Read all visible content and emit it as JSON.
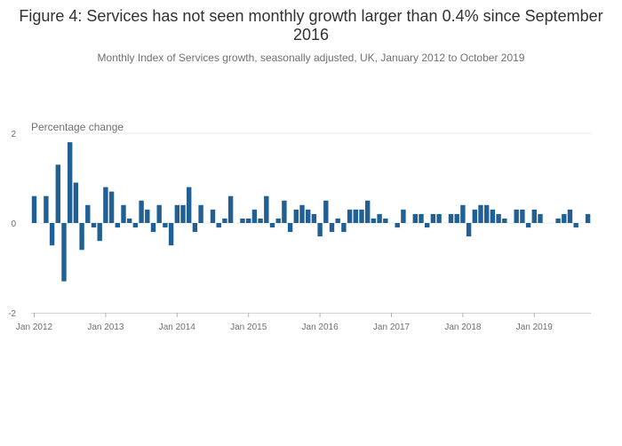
{
  "chart_data": {
    "type": "bar",
    "title": "Figure 4: Services has not seen monthly growth larger than 0.4% since September 2016",
    "subtitle": "Monthly Index of Services growth, seasonally adjusted, UK, January 2012 to October 2019",
    "ylabel": "Percentage change",
    "xlabel": "",
    "ylim": [
      -2,
      2
    ],
    "yticks": [
      2,
      0,
      -2
    ],
    "xticks": [
      "Jan 2012",
      "Jan 2013",
      "Jan 2014",
      "Jan 2015",
      "Jan 2016",
      "Jan 2017",
      "Jan 2018",
      "Jan 2019"
    ],
    "bar_color": "#206095",
    "grid": true,
    "x": [
      "2012-01",
      "2012-02",
      "2012-03",
      "2012-04",
      "2012-05",
      "2012-06",
      "2012-07",
      "2012-08",
      "2012-09",
      "2012-10",
      "2012-11",
      "2012-12",
      "2013-01",
      "2013-02",
      "2013-03",
      "2013-04",
      "2013-05",
      "2013-06",
      "2013-07",
      "2013-08",
      "2013-09",
      "2013-10",
      "2013-11",
      "2013-12",
      "2014-01",
      "2014-02",
      "2014-03",
      "2014-04",
      "2014-05",
      "2014-06",
      "2014-07",
      "2014-08",
      "2014-09",
      "2014-10",
      "2014-11",
      "2014-12",
      "2015-01",
      "2015-02",
      "2015-03",
      "2015-04",
      "2015-05",
      "2015-06",
      "2015-07",
      "2015-08",
      "2015-09",
      "2015-10",
      "2015-11",
      "2015-12",
      "2016-01",
      "2016-02",
      "2016-03",
      "2016-04",
      "2016-05",
      "2016-06",
      "2016-07",
      "2016-08",
      "2016-09",
      "2016-10",
      "2016-11",
      "2016-12",
      "2017-01",
      "2017-02",
      "2017-03",
      "2017-04",
      "2017-05",
      "2017-06",
      "2017-07",
      "2017-08",
      "2017-09",
      "2017-10",
      "2017-11",
      "2017-12",
      "2018-01",
      "2018-02",
      "2018-03",
      "2018-04",
      "2018-05",
      "2018-06",
      "2018-07",
      "2018-08",
      "2018-09",
      "2018-10",
      "2018-11",
      "2018-12",
      "2019-01",
      "2019-02",
      "2019-03",
      "2019-04",
      "2019-05",
      "2019-06",
      "2019-07",
      "2019-08",
      "2019-09",
      "2019-10"
    ],
    "values": [
      0.6,
      0.0,
      0.6,
      -0.5,
      1.3,
      -1.3,
      1.8,
      0.9,
      -0.6,
      0.4,
      -0.1,
      -0.4,
      0.8,
      0.7,
      -0.1,
      0.4,
      0.1,
      -0.1,
      0.5,
      0.3,
      -0.2,
      0.4,
      -0.1,
      -0.5,
      0.4,
      0.4,
      0.8,
      -0.2,
      0.4,
      0.0,
      0.3,
      -0.1,
      0.1,
      0.6,
      0.0,
      0.1,
      0.1,
      0.3,
      0.1,
      0.6,
      -0.1,
      0.1,
      0.5,
      -0.2,
      0.3,
      0.4,
      0.3,
      0.2,
      -0.3,
      0.5,
      -0.2,
      0.1,
      -0.2,
      0.3,
      0.3,
      0.3,
      0.5,
      0.1,
      0.2,
      0.1,
      0.0,
      -0.1,
      0.3,
      0.0,
      0.2,
      0.2,
      -0.1,
      0.2,
      0.2,
      0.0,
      0.2,
      0.2,
      0.4,
      -0.3,
      0.3,
      0.4,
      0.4,
      0.3,
      0.2,
      0.1,
      0.0,
      0.3,
      0.3,
      -0.1,
      0.3,
      0.2,
      0.0,
      0.0,
      0.1,
      0.2,
      0.3,
      -0.1,
      0.0,
      0.2
    ]
  }
}
